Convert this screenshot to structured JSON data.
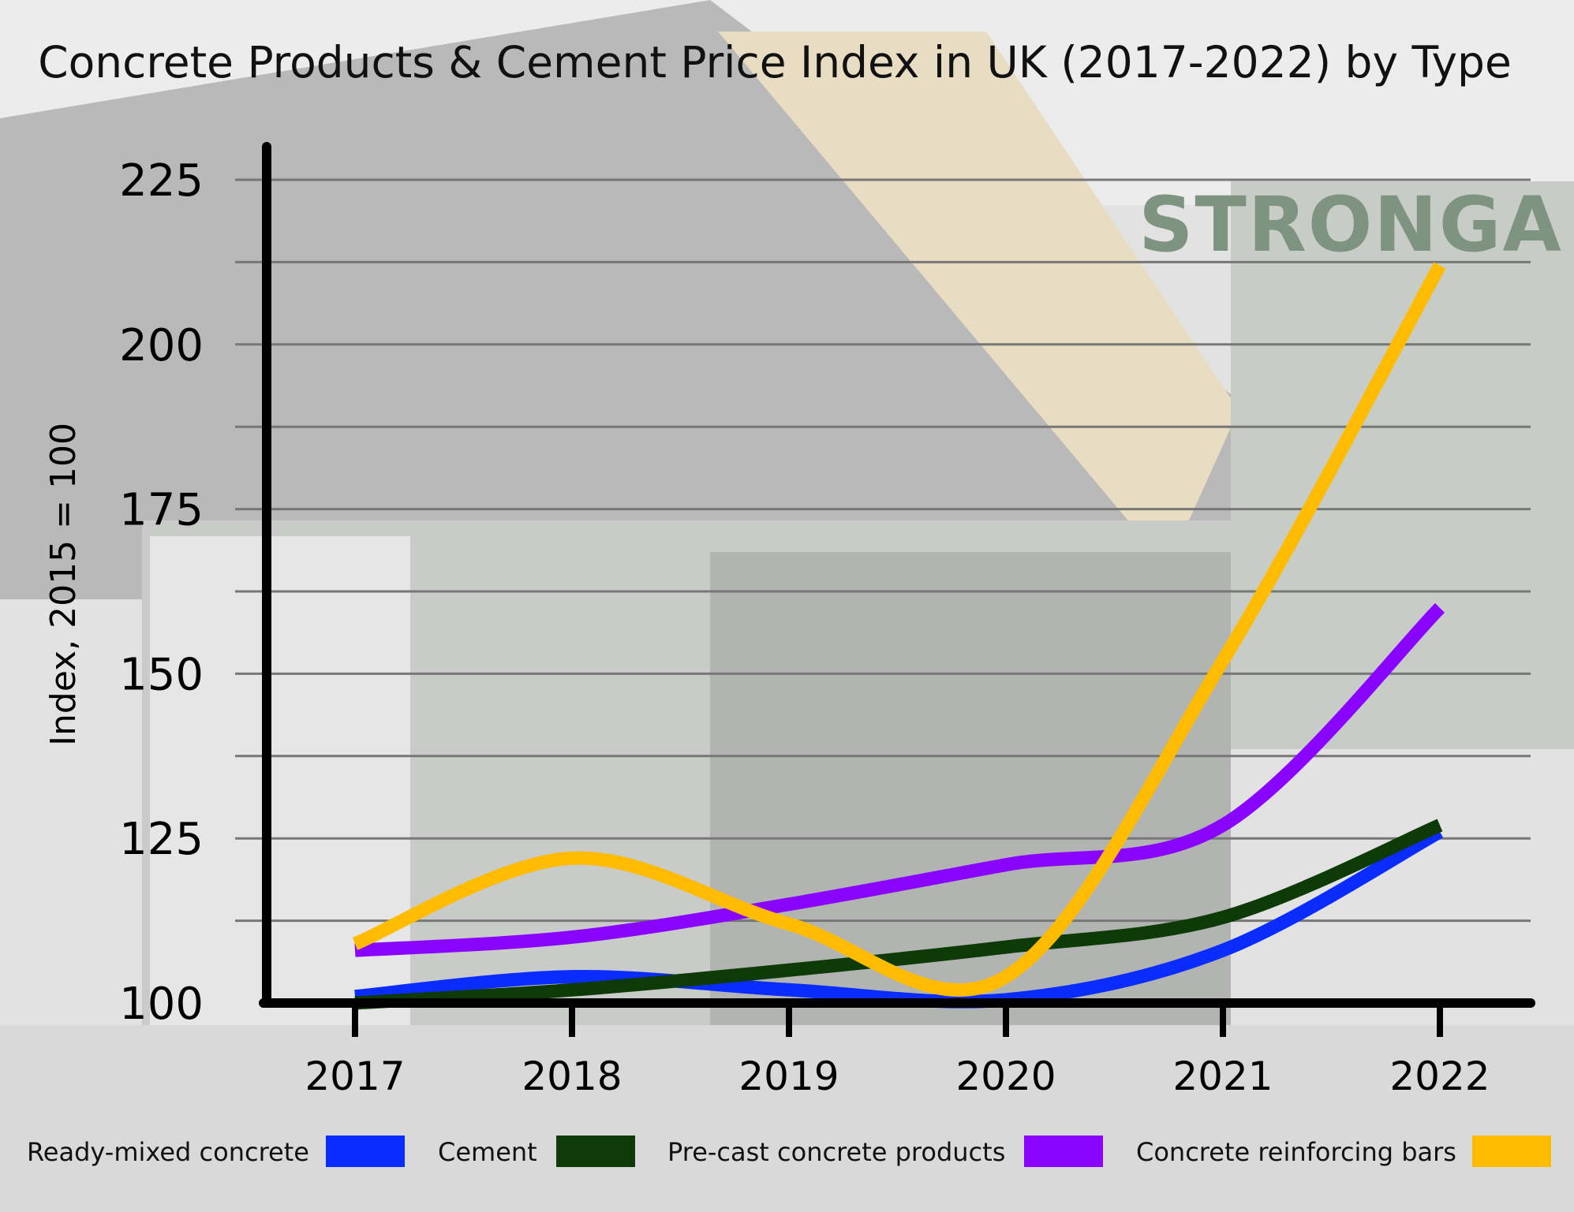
{
  "brand": "STRONGA",
  "colors": {
    "background": "#dcdcdc",
    "gridline": "#777777",
    "axis": "#000000"
  },
  "chart_data": {
    "type": "line",
    "title": "Concrete Products & Cement Price Index in UK (2017-2022) by Type",
    "xlabel": "",
    "ylabel": "Index, 2015 = 100",
    "x": [
      "2017",
      "2018",
      "2019",
      "2020",
      "2021",
      "2022"
    ],
    "ylim": [
      100,
      225
    ],
    "yticks": [
      100,
      125,
      150,
      175,
      200,
      225
    ],
    "grid": true,
    "legend": "bottom",
    "series": [
      {
        "name": "Ready-mixed concrete",
        "color": "#0a2cff",
        "values": [
          101,
          104,
          102,
          100.5,
          108,
          126
        ]
      },
      {
        "name": "Cement",
        "color": "#0d3a06",
        "values": [
          100,
          102,
          105,
          108.5,
          113,
          127
        ]
      },
      {
        "name": "Pre-cast concrete products",
        "color": "#8a05ff",
        "values": [
          108,
          110,
          115,
          121,
          127,
          160
        ]
      },
      {
        "name": "Concrete reinforcing bars",
        "color": "#ffbb00",
        "values": [
          109,
          122,
          112,
          104,
          152,
          212
        ]
      }
    ]
  }
}
